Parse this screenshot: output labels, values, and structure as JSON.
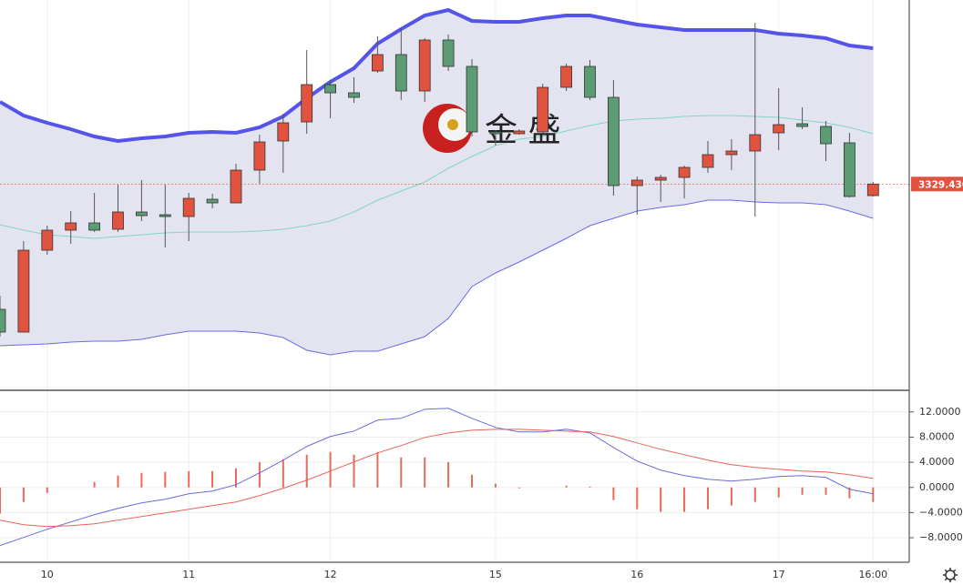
{
  "chart_data": [
    {
      "type": "candlestick",
      "categories": [
        null,
        null,
        "10",
        null,
        null,
        null,
        null,
        null,
        "11",
        null,
        null,
        null,
        null,
        null,
        "12",
        null,
        null,
        null,
        null,
        null,
        null,
        "15",
        null,
        null,
        null,
        null,
        null,
        "16",
        null,
        null,
        null,
        null,
        null,
        "17",
        null,
        null,
        null,
        "16:00"
      ],
      "open": [
        3295,
        3288.75,
        3311.25,
        3316.75,
        3318.75,
        3317,
        3321.75,
        3321,
        3320.5,
        3325.25,
        3324.25,
        3333.25,
        3341.25,
        3346.5,
        3356.75,
        3354.5,
        3360.5,
        3365,
        3355,
        3369,
        3361.75,
        3343.75,
        3343.25,
        3343.75,
        3356,
        3361.75,
        3353.25,
        3329,
        3330.5,
        3331.25,
        3334,
        3337.5,
        3338.5,
        3343.5,
        3346,
        3345.25,
        3340.75,
        3326.25
      ],
      "high": [
        3298.75,
        3313.75,
        3318,
        3322,
        3327,
        3329.25,
        3330.5,
        3329.25,
        3327,
        3326.75,
        3335,
        3343,
        3348.75,
        3366.25,
        3358,
        3358.75,
        3370,
        3372.5,
        3369.5,
        3370.5,
        3363.75,
        3344.25,
        3344.5,
        3357,
        3362.5,
        3363.5,
        3358,
        3331.5,
        3332,
        3334.5,
        3341.25,
        3341.75,
        3373.75,
        3355.75,
        3350.5,
        3346.75,
        3343.5,
        3330
      ],
      "low": [
        3287.5,
        3288.75,
        3310,
        3313,
        3316.25,
        3316.25,
        3319.25,
        3312,
        3313.75,
        3322.75,
        3324.25,
        3329.5,
        3332.5,
        3343.25,
        3347.5,
        3351.75,
        3360,
        3352.5,
        3352,
        3360.5,
        3342.5,
        3340,
        3343,
        3343.25,
        3355,
        3352.5,
        3326.25,
        3321,
        3324.5,
        3325.5,
        3332.5,
        3333.25,
        3320.5,
        3338.75,
        3344.5,
        3335.75,
        3325.75,
        3326
      ],
      "close": [
        3288.75,
        3311.25,
        3316.75,
        3318.75,
        3316.75,
        3321.75,
        3320.75,
        3320.5,
        3325.5,
        3324.25,
        3333.25,
        3341,
        3346.25,
        3356.75,
        3354.5,
        3353.25,
        3365,
        3355,
        3369,
        3361.75,
        3343.75,
        3343.25,
        3344,
        3356,
        3361.75,
        3353.25,
        3329,
        3330.5,
        3331.25,
        3334,
        3337.5,
        3338.5,
        3343,
        3345.75,
        3345.25,
        3340.5,
        3326,
        3329.43
      ],
      "up_color": "#e0533f",
      "down_color": "#5b9c74",
      "band_fill": "#e4e4f1",
      "overlays": [
        {
          "color": "#5454e8",
          "values": [
            3352,
            3348.25,
            3346.25,
            3344.5,
            3342.5,
            3341.25,
            3342,
            3342.5,
            3343.5,
            3343.75,
            3343.5,
            3345,
            3348,
            3353,
            3357.5,
            3361.25,
            3368,
            3372,
            3375.75,
            3377.25,
            3374.25,
            3374,
            3374,
            3375,
            3375.75,
            3375.75,
            3374.5,
            3373.25,
            3372.5,
            3371.75,
            3371.75,
            3371.75,
            3371.75,
            3370.75,
            3370.25,
            3369.5,
            3367.5,
            3366.75
          ]
        },
        {
          "color": "#7fd6c6",
          "values": [
            3318.25,
            3316.75,
            3315.5,
            3315,
            3314.5,
            3315,
            3315.5,
            3316,
            3316.25,
            3316.25,
            3316.25,
            3316.5,
            3317,
            3318,
            3319.25,
            3321.75,
            3325,
            3327.5,
            3330,
            3333.75,
            3337,
            3340,
            3341.75,
            3342.5,
            3344,
            3345.5,
            3346.75,
            3347.25,
            3347.5,
            3348,
            3348.25,
            3348.25,
            3348,
            3347.75,
            3347,
            3346.25,
            3345,
            3343.25
          ]
        },
        {
          "color": "#6a6ae8",
          "values": [
            3285,
            3285.25,
            3285.5,
            3286,
            3286.25,
            3286.25,
            3286.75,
            3288,
            3289,
            3289,
            3289,
            3288.5,
            3287.25,
            3283.75,
            3282.5,
            3283.5,
            3283.5,
            3285.5,
            3287.5,
            3292.5,
            3301.25,
            3305,
            3308,
            3311.25,
            3314.5,
            3318,
            3320,
            3322,
            3323,
            3323.75,
            3325,
            3325,
            3324.5,
            3324.25,
            3324.25,
            3323.75,
            3322,
            3320
          ]
        }
      ],
      "last_price": {
        "value": 3329.43,
        "label": "3329.430"
      },
      "ylim": [
        3273,
        3380
      ],
      "watermark": "金 盛"
    },
    {
      "type": "macd",
      "histogram": {
        "color": "#e86a5a",
        "values": [
          -4.19,
          -2.31,
          -0.87,
          0,
          0.87,
          1.88,
          2.31,
          2.46,
          2.6,
          2.6,
          3.04,
          4.05,
          4.48,
          5.2,
          5.64,
          5.2,
          5.64,
          4.77,
          4.77,
          4.05,
          2.02,
          0.58,
          -0.14,
          0,
          0.29,
          0.14,
          -2.02,
          -3.47,
          -3.9,
          -3.9,
          -3.47,
          -2.89,
          -2.31,
          -1.59,
          -1.16,
          -1.16,
          -1.73,
          -2.31
        ]
      },
      "series": [
        {
          "color": "#6b6be0",
          "values": [
            -9.25,
            -7.95,
            -6.65,
            -5.49,
            -4.34,
            -3.33,
            -2.46,
            -1.88,
            -1.01,
            -0.58,
            0.43,
            2.31,
            4.34,
            6.51,
            8.1,
            8.96,
            10.7,
            10.99,
            12.43,
            12.58,
            10.99,
            9.54,
            8.82,
            8.82,
            9.25,
            8.67,
            6.36,
            4.19,
            2.75,
            1.88,
            1.3,
            1.01,
            1.3,
            1.73,
            1.88,
            1.59,
            -0.29,
            -1.01
          ]
        },
        {
          "color": "#e8645a",
          "values": [
            -5.2,
            -5.93,
            -6.22,
            -6.07,
            -5.78,
            -5.2,
            -4.63,
            -4.05,
            -3.47,
            -2.89,
            -2.31,
            -1.3,
            -0.14,
            1.16,
            2.6,
            4.05,
            5.49,
            6.65,
            7.95,
            8.67,
            9.1,
            9.25,
            9.25,
            9.1,
            8.96,
            8.82,
            8.1,
            7.08,
            6.07,
            5.2,
            4.34,
            3.61,
            3.18,
            2.89,
            2.6,
            2.46,
            2.02,
            1.45
          ]
        }
      ],
      "ylim": [
        -11.9,
        15.3
      ],
      "yticks": [
        {
          "value": 12,
          "label": "12.0000"
        },
        {
          "value": 8,
          "label": "8.0000"
        },
        {
          "value": 4,
          "label": "4.0000"
        },
        {
          "value": 0,
          "label": "0.0000"
        },
        {
          "value": -4,
          "label": "−4.0000"
        },
        {
          "value": -8,
          "label": "−8.0000"
        }
      ],
      "grid": true
    }
  ]
}
